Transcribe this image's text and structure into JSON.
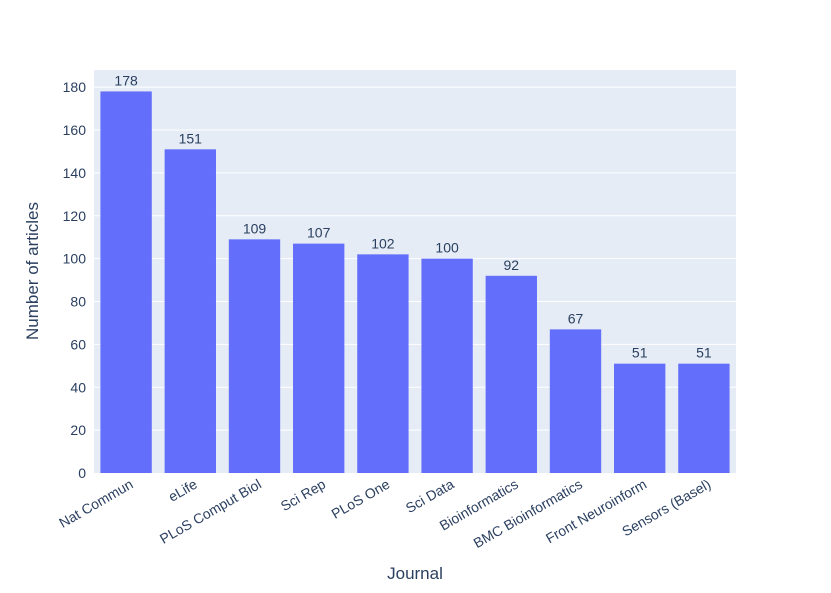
{
  "chart_data": {
    "type": "bar",
    "categories": [
      "Nat Commun",
      "eLife",
      "PLoS Comput Biol",
      "Sci Rep",
      "PLoS One",
      "Sci Data",
      "Bioinformatics",
      "BMC Bioinformatics",
      "Front Neuroinform",
      "Sensors (Basel)"
    ],
    "values": [
      178,
      151,
      109,
      107,
      102,
      100,
      92,
      67,
      51,
      51
    ],
    "data_labels": [
      "178",
      "151",
      "109",
      "107",
      "102",
      "100",
      "92",
      "67",
      "51",
      "51"
    ],
    "xlabel": "Journal",
    "ylabel": "Number of articles",
    "ylim": [
      0,
      188
    ],
    "yticks": [
      0,
      20,
      40,
      60,
      80,
      100,
      120,
      140,
      160,
      180
    ],
    "ytick_labels": [
      "0",
      "20",
      "40",
      "60",
      "80",
      "100",
      "120",
      "140",
      "160",
      "180"
    ],
    "grid": true,
    "legend": "none",
    "colors": {
      "bar": "#636efa",
      "plot_background": "#e5ecf6",
      "grid": "#ffffff",
      "text": "#2a3f5f"
    }
  }
}
